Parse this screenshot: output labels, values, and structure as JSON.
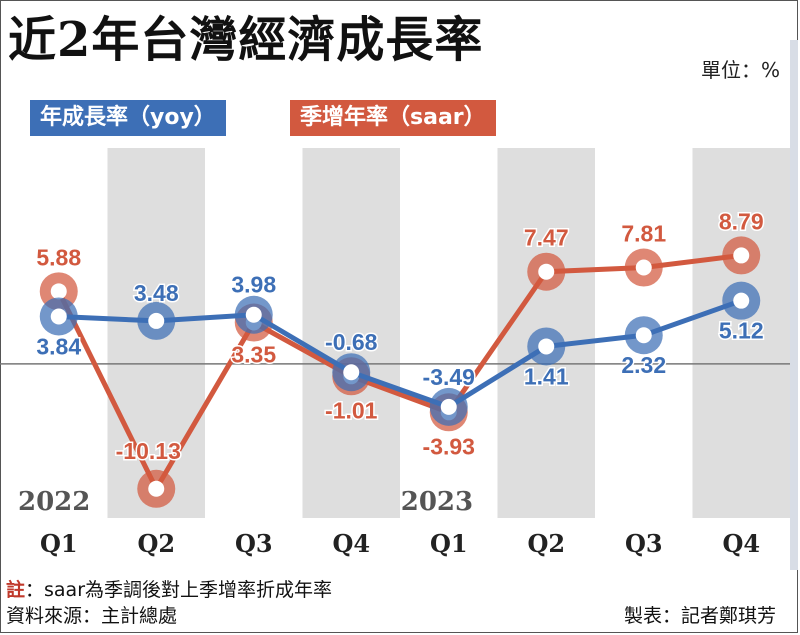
{
  "title": "近2年台灣經濟成長率",
  "unit_label": "單位：%",
  "chart_data": {
    "type": "line",
    "categories": [
      "Q1",
      "Q2",
      "Q3",
      "Q4",
      "Q1",
      "Q2",
      "Q3",
      "Q4"
    ],
    "year_labels": [
      {
        "label": "2022",
        "index": 0
      },
      {
        "label": "2023",
        "index": 4
      }
    ],
    "series": [
      {
        "name": "年成長率（yoy）",
        "color": "#3d6fb6",
        "values": [
          3.84,
          3.48,
          3.98,
          -0.68,
          -3.49,
          1.41,
          2.32,
          5.12
        ],
        "labels": [
          "3.84",
          "3.48",
          "3.98",
          "-0.68",
          "-3.49",
          "1.41",
          "2.32",
          "5.12"
        ]
      },
      {
        "name": "季增年率（saar）",
        "color": "#d2593f",
        "values": [
          5.88,
          -10.13,
          3.35,
          -1.01,
          -3.93,
          7.47,
          7.81,
          8.79
        ],
        "labels": [
          "5.88",
          "-10.13",
          "3.35",
          "-1.01",
          "-3.93",
          "7.47",
          "7.81",
          "8.79"
        ]
      }
    ],
    "ylim": [
      -12.5,
      17.5
    ],
    "grid": false,
    "legend": "top-left"
  },
  "footer": {
    "note_mark": "註",
    "note_text": "：saar為季調後對上季增率折成年率",
    "source": "資料來源：主計總處",
    "credit": "製表：記者鄭琪芳"
  }
}
